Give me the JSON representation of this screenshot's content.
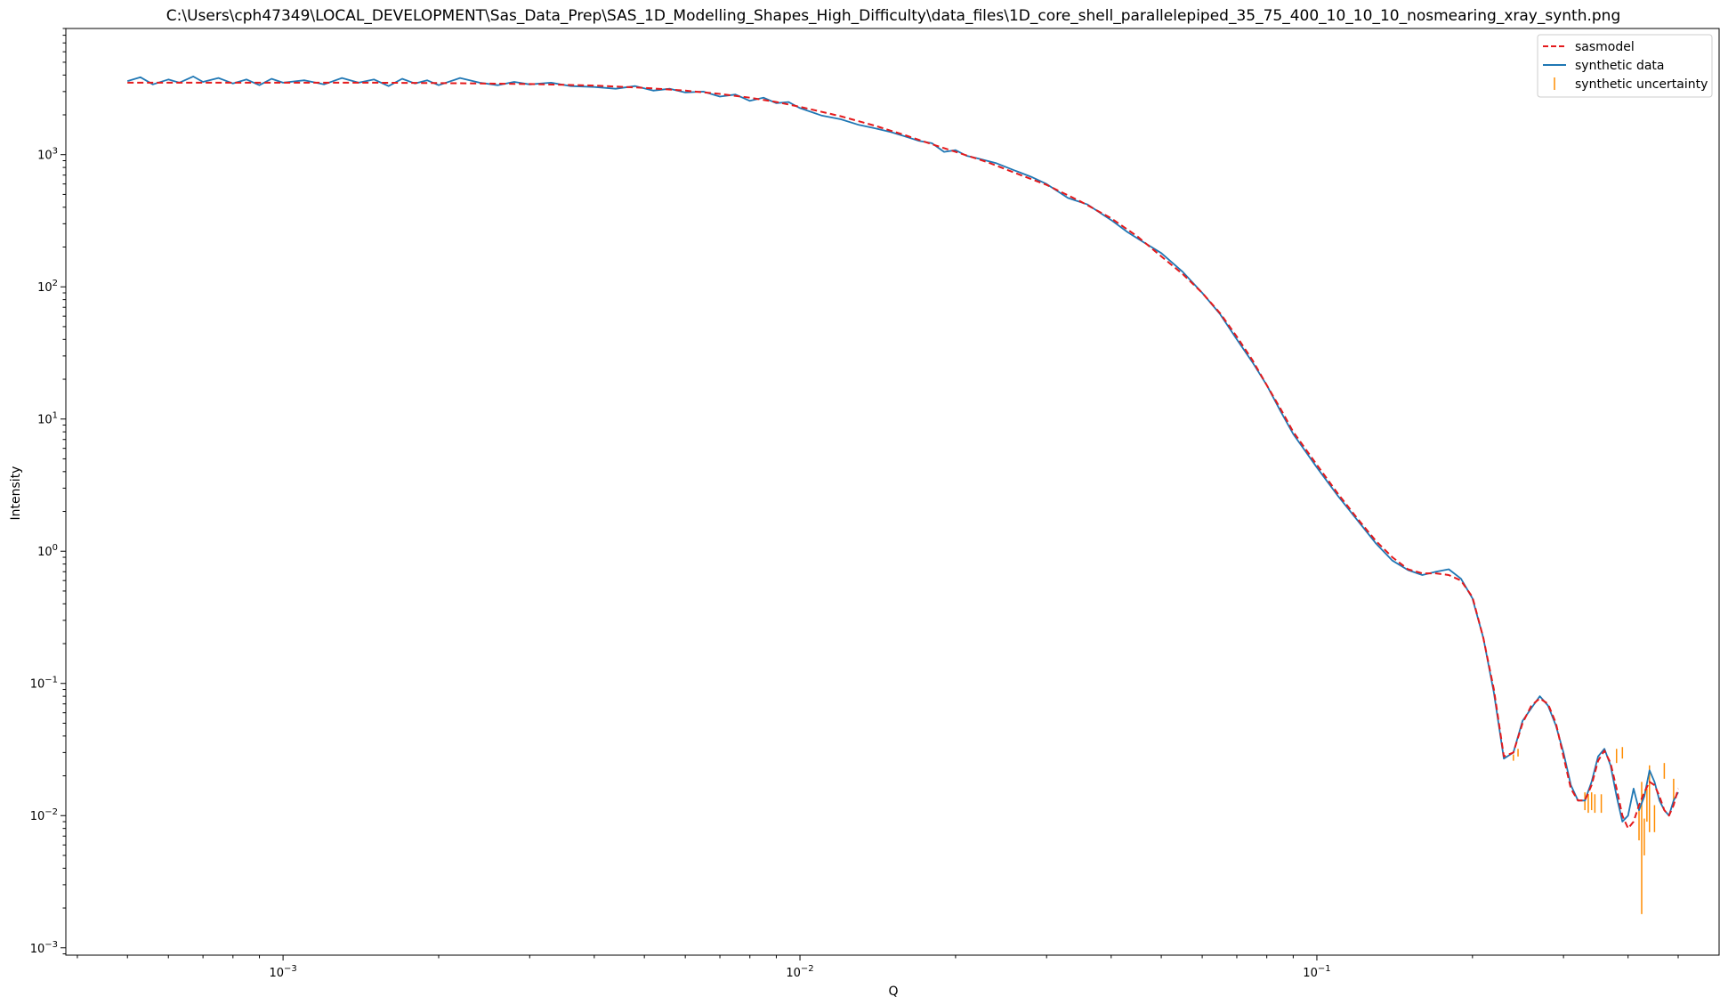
{
  "chart_data": {
    "type": "line",
    "title": "C:\\Users\\cph47349\\LOCAL_DEVELOPMENT\\Sas_Data_Prep\\SAS_1D_Modelling_Shapes_High_Difficulty\\data_files\\1D_core_shell_parallelepiped_35_75_400_10_10_10_nosmearing_xray_synth.png",
    "xlabel": "Q",
    "ylabel": "Intensity",
    "xscale": "log",
    "yscale": "log",
    "xlim": [
      0.00038,
      0.6
    ],
    "ylim": [
      0.00088,
      9000
    ],
    "grid": false,
    "legend_position": "top-right",
    "x_ticks": [
      {
        "value": 0.001,
        "base": "10",
        "exp": "−3"
      },
      {
        "value": 0.01,
        "base": "10",
        "exp": "−2"
      },
      {
        "value": 0.1,
        "base": "10",
        "exp": "−1"
      }
    ],
    "y_ticks": [
      {
        "value": 0.001,
        "base": "10",
        "exp": "−3"
      },
      {
        "value": 0.01,
        "base": "10",
        "exp": "−2"
      },
      {
        "value": 0.1,
        "base": "10",
        "exp": "−1"
      },
      {
        "value": 1,
        "base": "10",
        "exp": "0"
      },
      {
        "value": 10,
        "base": "10",
        "exp": "1"
      },
      {
        "value": 100,
        "base": "10",
        "exp": "2"
      },
      {
        "value": 1000,
        "base": "10",
        "exp": "3"
      }
    ],
    "series": [
      {
        "name": "sasmodel",
        "style": "dashed",
        "color": "#e41a1c",
        "x": [
          0.0005,
          0.0007,
          0.001,
          0.0015,
          0.002,
          0.003,
          0.004,
          0.005,
          0.006,
          0.007,
          0.008,
          0.009,
          0.01,
          0.012,
          0.014,
          0.016,
          0.018,
          0.02,
          0.023,
          0.026,
          0.03,
          0.035,
          0.04,
          0.045,
          0.05,
          0.055,
          0.06,
          0.065,
          0.07,
          0.075,
          0.08,
          0.085,
          0.09,
          0.1,
          0.11,
          0.12,
          0.13,
          0.14,
          0.15,
          0.16,
          0.17,
          0.18,
          0.19,
          0.2,
          0.21,
          0.22,
          0.23,
          0.24,
          0.25,
          0.26,
          0.27,
          0.28,
          0.29,
          0.3,
          0.31,
          0.32,
          0.33,
          0.34,
          0.35,
          0.36,
          0.37,
          0.38,
          0.39,
          0.4,
          0.41,
          0.42,
          0.43,
          0.44,
          0.45,
          0.46,
          0.47,
          0.48,
          0.49,
          0.5
        ],
        "y": [
          3500,
          3500,
          3500,
          3500,
          3480,
          3420,
          3330,
          3200,
          3050,
          2880,
          2700,
          2500,
          2300,
          1950,
          1650,
          1400,
          1200,
          1050,
          880,
          730,
          590,
          440,
          330,
          240,
          170,
          125,
          90,
          63,
          42,
          28,
          18,
          12,
          8,
          4.5,
          2.7,
          1.75,
          1.2,
          0.9,
          0.73,
          0.68,
          0.68,
          0.66,
          0.6,
          0.45,
          0.22,
          0.09,
          0.028,
          0.03,
          0.05,
          0.068,
          0.077,
          0.07,
          0.05,
          0.028,
          0.016,
          0.013,
          0.013,
          0.017,
          0.026,
          0.031,
          0.025,
          0.016,
          0.01,
          0.008,
          0.009,
          0.012,
          0.015,
          0.018,
          0.017,
          0.014,
          0.011,
          0.01,
          0.012,
          0.016
        ]
      },
      {
        "name": "synthetic data",
        "style": "solid",
        "color": "#1f77b4",
        "x": [
          0.0005,
          0.00053,
          0.00056,
          0.0006,
          0.00063,
          0.00067,
          0.0007,
          0.00075,
          0.0008,
          0.00085,
          0.0009,
          0.00095,
          0.001,
          0.0011,
          0.0012,
          0.0013,
          0.0014,
          0.0015,
          0.0016,
          0.0017,
          0.0018,
          0.0019,
          0.002,
          0.0022,
          0.0024,
          0.0026,
          0.0028,
          0.003,
          0.0033,
          0.0036,
          0.004,
          0.0044,
          0.0048,
          0.0052,
          0.0056,
          0.006,
          0.0065,
          0.007,
          0.0075,
          0.008,
          0.0085,
          0.009,
          0.0095,
          0.01,
          0.011,
          0.012,
          0.013,
          0.014,
          0.015,
          0.016,
          0.017,
          0.018,
          0.019,
          0.02,
          0.021,
          0.022,
          0.024,
          0.026,
          0.028,
          0.03,
          0.033,
          0.036,
          0.04,
          0.043,
          0.046,
          0.05,
          0.055,
          0.06,
          0.065,
          0.07,
          0.075,
          0.08,
          0.085,
          0.09,
          0.1,
          0.11,
          0.12,
          0.13,
          0.14,
          0.15,
          0.16,
          0.17,
          0.18,
          0.19,
          0.2,
          0.21,
          0.22,
          0.23,
          0.24,
          0.25,
          0.26,
          0.27,
          0.28,
          0.29,
          0.3,
          0.31,
          0.32,
          0.33,
          0.34,
          0.35,
          0.36,
          0.37,
          0.38,
          0.39,
          0.4,
          0.41,
          0.42,
          0.43,
          0.44,
          0.45,
          0.46,
          0.47,
          0.48,
          0.49,
          0.5
        ],
        "y": [
          3600,
          3850,
          3400,
          3700,
          3500,
          3900,
          3550,
          3800,
          3450,
          3700,
          3350,
          3750,
          3500,
          3650,
          3400,
          3800,
          3500,
          3700,
          3300,
          3750,
          3450,
          3650,
          3350,
          3800,
          3500,
          3350,
          3550,
          3400,
          3500,
          3300,
          3250,
          3150,
          3300,
          3050,
          3150,
          2950,
          3000,
          2750,
          2850,
          2550,
          2700,
          2450,
          2500,
          2250,
          1980,
          1850,
          1680,
          1580,
          1480,
          1370,
          1270,
          1220,
          1050,
          1080,
          980,
          940,
          860,
          760,
          680,
          600,
          470,
          420,
          320,
          260,
          220,
          180,
          130,
          90,
          62,
          40,
          27,
          18,
          11.5,
          7.7,
          4.3,
          2.6,
          1.7,
          1.15,
          0.85,
          0.72,
          0.66,
          0.7,
          0.73,
          0.62,
          0.44,
          0.22,
          0.085,
          0.027,
          0.03,
          0.052,
          0.065,
          0.08,
          0.068,
          0.048,
          0.03,
          0.017,
          0.013,
          0.013,
          0.018,
          0.028,
          0.032,
          0.024,
          0.014,
          0.009,
          0.01,
          0.016,
          0.011,
          0.014,
          0.022,
          0.018,
          0.013,
          0.011,
          0.01,
          0.013,
          0.015
        ]
      },
      {
        "name": "synthetic uncertainty",
        "style": "errorbar",
        "color": "#ff8c00",
        "x": [
          0.24,
          0.245,
          0.33,
          0.335,
          0.34,
          0.345,
          0.355,
          0.38,
          0.39,
          0.42,
          0.425,
          0.43,
          0.435,
          0.44,
          0.45,
          0.47,
          0.49
        ],
        "y": [
          0.027,
          0.03,
          0.013,
          0.012,
          0.013,
          0.012,
          0.012,
          0.028,
          0.03,
          0.009,
          0.008,
          0.007,
          0.012,
          0.015,
          0.01,
          0.022,
          0.016
        ],
        "y_low": [
          0.026,
          0.028,
          0.011,
          0.0105,
          0.011,
          0.0105,
          0.0105,
          0.025,
          0.027,
          0.0065,
          0.0018,
          0.005,
          0.009,
          0.0075,
          0.0075,
          0.019,
          0.013
        ],
        "y_high": [
          0.029,
          0.032,
          0.015,
          0.0145,
          0.015,
          0.0145,
          0.0145,
          0.032,
          0.033,
          0.011,
          0.018,
          0.0095,
          0.016,
          0.024,
          0.012,
          0.025,
          0.019
        ]
      }
    ]
  }
}
